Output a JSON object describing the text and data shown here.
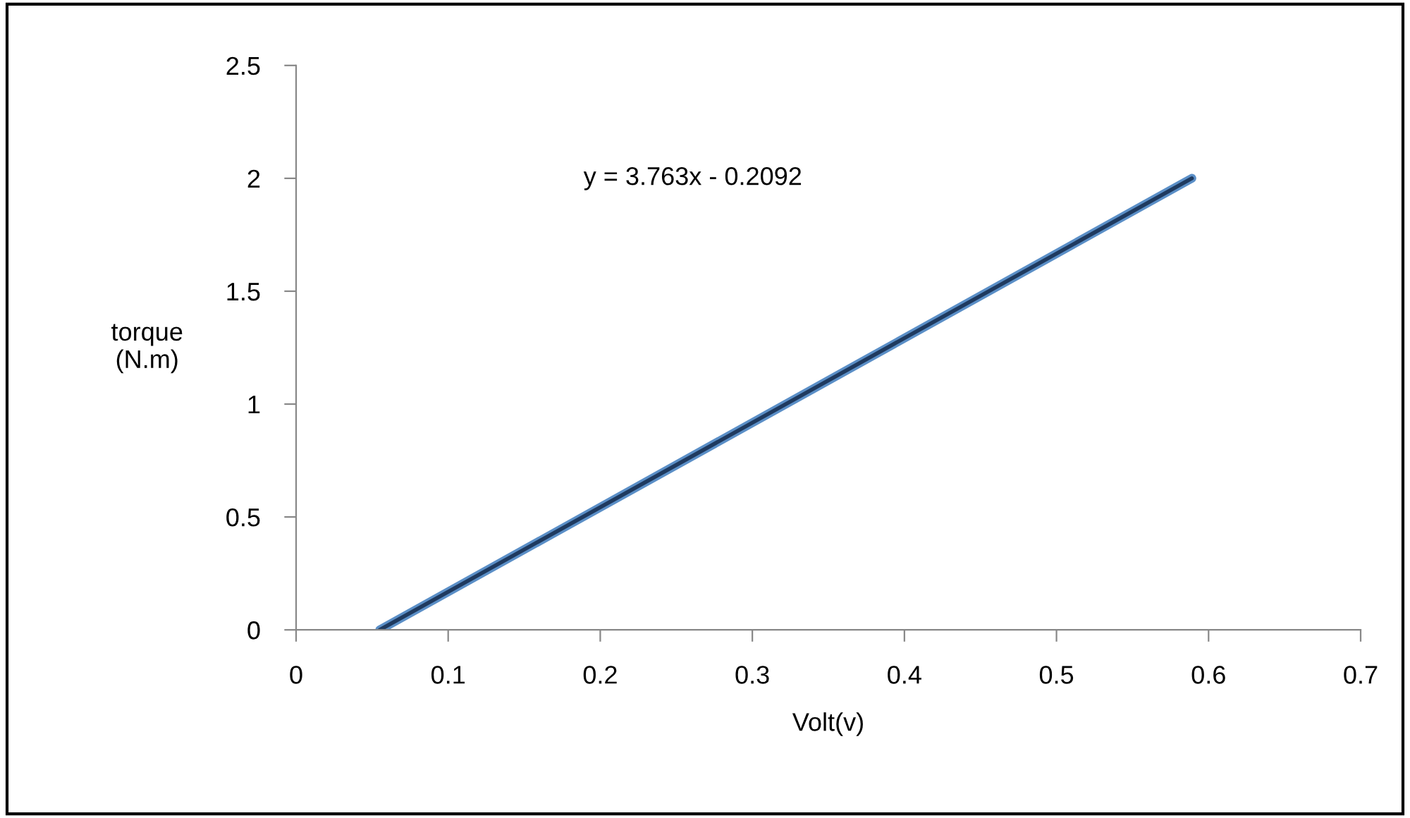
{
  "chart_data": {
    "type": "line",
    "xlabel": "Volt(v)",
    "ylabel": "torque\n(N.m)",
    "series": [
      {
        "color": "#1f3a5f",
        "x": [
          0.055,
          0.589
        ],
        "values": [
          0,
          2.0
        ]
      }
    ],
    "annotations": [
      "y = 3.763x - 0.2092"
    ],
    "xlim": [
      0,
      0.7
    ],
    "xticks": [
      0,
      0.1,
      0.2,
      0.3,
      0.4,
      0.5,
      0.6,
      0.7
    ],
    "ylim": [
      0,
      2.5
    ],
    "yticks": [
      0,
      0.5,
      1,
      1.5,
      2,
      2.5
    ],
    "grid": false,
    "legend": false
  }
}
